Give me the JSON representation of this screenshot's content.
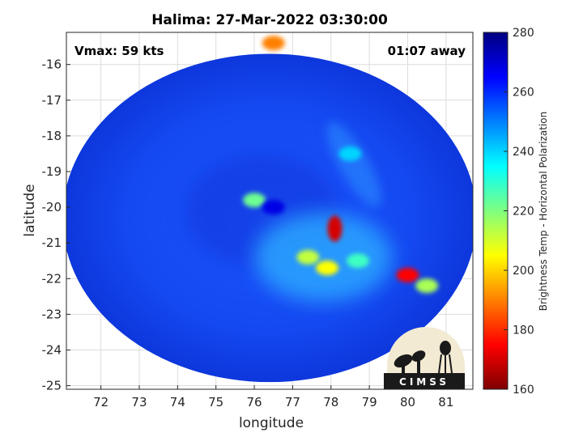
{
  "chart_data": {
    "type": "heatmap",
    "title": "Halima: 27-Mar-2022 03:30:00",
    "xlabel": "longitude",
    "ylabel": "latitude",
    "xlim": [
      71.1,
      81.7
    ],
    "ylim": [
      -25.1,
      -15.1
    ],
    "x_ticks": [
      72,
      73,
      74,
      75,
      76,
      77,
      78,
      79,
      80,
      81
    ],
    "y_ticks": [
      -16,
      -17,
      -18,
      -19,
      -20,
      -21,
      -22,
      -23,
      -24,
      -25
    ],
    "grid": true,
    "annotations": {
      "vmax": "Vmax: 59 kts",
      "time_offset": "01:07 away"
    },
    "colorbar": {
      "label": "Brightness Temp - Horizontal Polarization",
      "min": 160,
      "max": 280,
      "ticks": [
        160,
        180,
        200,
        220,
        240,
        260,
        280
      ],
      "colormap": "jet"
    },
    "swath": {
      "center_lon": 76.4,
      "center_lat": -20.3,
      "radius_lon": 5.4,
      "radius_lat": 4.6
    },
    "features": [
      {
        "lon": 78.1,
        "lat": -20.6,
        "value": 170
      },
      {
        "lon": 80.0,
        "lat": -21.9,
        "value": 175
      },
      {
        "lon": 77.9,
        "lat": -21.7,
        "value": 205
      },
      {
        "lon": 77.4,
        "lat": -21.4,
        "value": 212
      },
      {
        "lon": 78.7,
        "lat": -21.5,
        "value": 228
      },
      {
        "lon": 76.0,
        "lat": -19.8,
        "value": 222
      },
      {
        "lon": 80.5,
        "lat": -22.2,
        "value": 215
      },
      {
        "lon": 76.5,
        "lat": -15.4,
        "value": 190
      },
      {
        "lon": 78.5,
        "lat": -18.5,
        "value": 240
      },
      {
        "lon": 76.5,
        "lat": -20.0,
        "value": 268
      }
    ]
  },
  "logo": {
    "text": "CIMSS"
  }
}
